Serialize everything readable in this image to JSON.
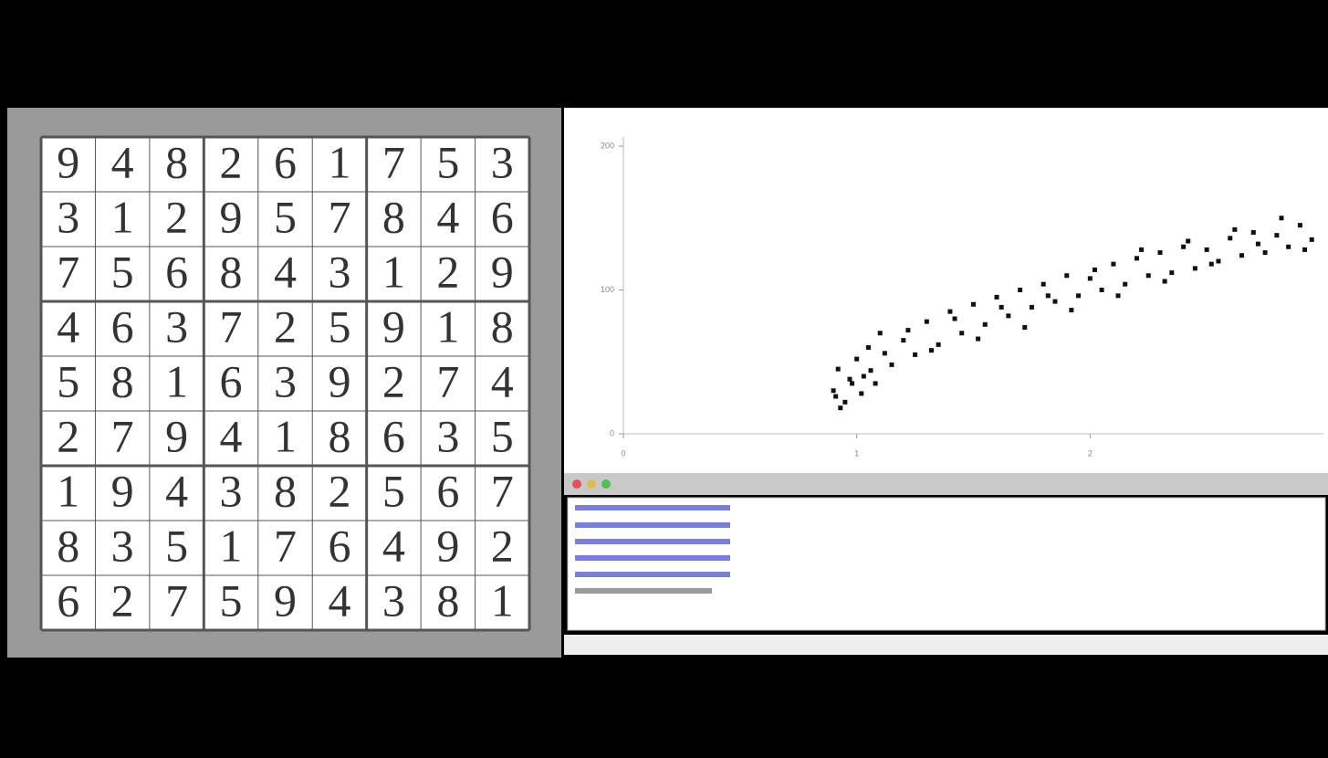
{
  "sudoku": {
    "rows": [
      [
        9,
        4,
        8,
        2,
        6,
        1,
        7,
        5,
        3
      ],
      [
        3,
        1,
        2,
        9,
        5,
        7,
        8,
        4,
        6
      ],
      [
        7,
        5,
        6,
        8,
        4,
        3,
        1,
        2,
        9
      ],
      [
        4,
        6,
        3,
        7,
        2,
        5,
        9,
        1,
        8
      ],
      [
        5,
        8,
        1,
        6,
        3,
        9,
        2,
        7,
        4
      ],
      [
        2,
        7,
        9,
        4,
        1,
        8,
        6,
        3,
        5
      ],
      [
        1,
        9,
        4,
        3,
        8,
        2,
        5,
        6,
        7
      ],
      [
        8,
        3,
        5,
        1,
        7,
        6,
        4,
        9,
        2
      ],
      [
        6,
        2,
        7,
        5,
        9,
        4,
        3,
        8,
        1
      ]
    ]
  },
  "chart_data": {
    "type": "scatter",
    "color": "#111111",
    "xlim": [
      0,
      3
    ],
    "ylim": [
      0,
      200
    ],
    "xticks": [
      0,
      1,
      2
    ],
    "yticks": [
      0,
      100,
      200
    ],
    "x": [
      0.9,
      0.92,
      0.95,
      0.97,
      1.0,
      1.02,
      1.05,
      1.08,
      1.1,
      1.15,
      1.2,
      1.25,
      1.3,
      1.35,
      1.4,
      1.45,
      1.5,
      1.55,
      1.6,
      1.65,
      1.7,
      1.75,
      1.8,
      1.85,
      1.9,
      1.95,
      2.0,
      2.05,
      2.1,
      2.15,
      2.2,
      2.25,
      2.3,
      2.35,
      2.4,
      2.45,
      2.5,
      2.55,
      2.6,
      2.65,
      2.7,
      2.75,
      2.8,
      2.85,
      2.9,
      2.95,
      0.93,
      1.03,
      1.12,
      1.22,
      1.32,
      1.42,
      1.52,
      1.62,
      1.72,
      1.82,
      1.92,
      2.02,
      2.12,
      2.22,
      2.32,
      2.42,
      2.52,
      2.62,
      2.72,
      2.82,
      2.92,
      0.91,
      0.98,
      1.06
    ],
    "y": [
      30,
      45,
      22,
      38,
      52,
      28,
      60,
      35,
      70,
      48,
      65,
      55,
      78,
      62,
      85,
      70,
      90,
      76,
      95,
      82,
      100,
      88,
      104,
      92,
      110,
      96,
      108,
      100,
      118,
      104,
      122,
      110,
      126,
      112,
      130,
      115,
      128,
      120,
      136,
      124,
      140,
      126,
      138,
      130,
      145,
      135,
      18,
      40,
      56,
      72,
      58,
      80,
      66,
      88,
      74,
      96,
      86,
      114,
      96,
      128,
      106,
      134,
      118,
      142,
      132,
      150,
      128,
      26,
      35,
      44
    ]
  }
}
